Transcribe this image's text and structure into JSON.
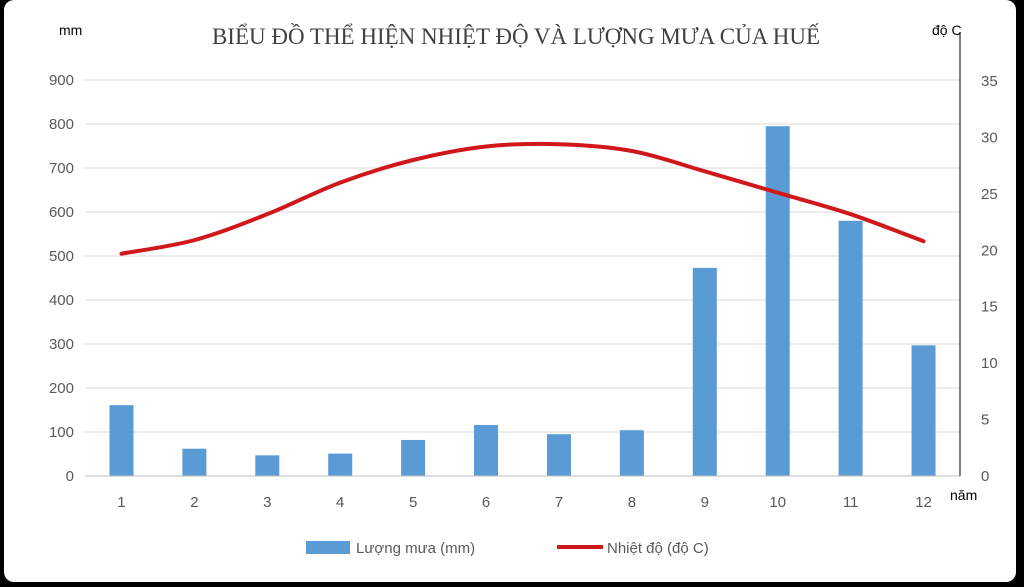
{
  "chart_data": {
    "type": "bar-line",
    "title": "BIỂU ĐỒ THỂ HIỆN NHIỆT ĐỘ VÀ LƯỢNG MƯA CỦA HUẾ",
    "categories": [
      "1",
      "2",
      "3",
      "4",
      "5",
      "6",
      "7",
      "8",
      "9",
      "10",
      "11",
      "12"
    ],
    "left_axis": {
      "unit": "mm",
      "ticks": [
        "0",
        "100",
        "200",
        "300",
        "400",
        "500",
        "600",
        "700",
        "800",
        "900"
      ],
      "range": [
        0,
        900
      ]
    },
    "right_axis": {
      "unit": "độ C",
      "ticks": [
        "0",
        "5",
        "10",
        "15",
        "20",
        "25",
        "30",
        "35"
      ],
      "range": [
        0,
        35
      ]
    },
    "x_axis": {
      "unit": "năm"
    },
    "series": [
      {
        "name": "Lượng mưa (mm)",
        "type": "bar",
        "axis": "left",
        "color": "#5b9bd5",
        "values": [
          161,
          62,
          47,
          51,
          82,
          116,
          95,
          104,
          473,
          795,
          580,
          297
        ]
      },
      {
        "name": "Nhiệt độ (độ C)",
        "type": "line",
        "axis": "right",
        "color": "#d0181c",
        "values": [
          19.7,
          20.9,
          23.2,
          26.0,
          28.0,
          29.2,
          29.4,
          28.8,
          27.0,
          25.1,
          23.2,
          20.8
        ]
      }
    ],
    "grid": true,
    "legend": "bottom"
  }
}
